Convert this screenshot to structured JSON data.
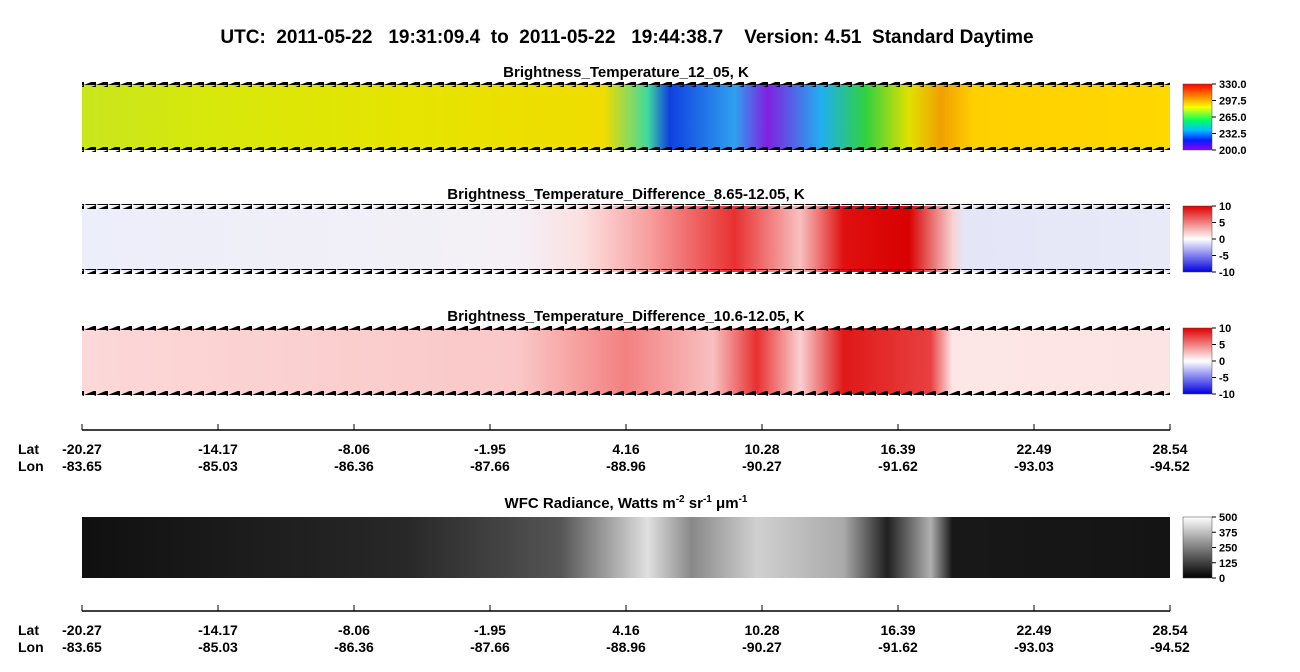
{
  "header": {
    "title": "UTC:  2011-05-22   19:31:09.4  to  2011-05-22   19:44:38.7    Version: 4.51  Standard Daytime"
  },
  "panels": [
    {
      "title": "Brightness_Temperature_12_05, K",
      "colorbar": [
        "330.0",
        "297.5",
        "265.0",
        "232.5",
        "200.0"
      ]
    },
    {
      "title": "Brightness_Temperature_Difference_8.65-12.05, K",
      "colorbar": [
        "10",
        "5",
        "0",
        "-5",
        "-10"
      ]
    },
    {
      "title": "Brightness_Temperature_Difference_10.6-12.05, K",
      "colorbar": [
        "10",
        "5",
        "0",
        "-5",
        "-10"
      ]
    }
  ],
  "wfc": {
    "title_parts": [
      "WFC Radiance, Watts m",
      "-2",
      " sr",
      "-1",
      " μm",
      "-1"
    ],
    "colorbar": [
      "500",
      "375",
      "250",
      "125",
      "0"
    ]
  },
  "axis": {
    "lat_label": "Lat",
    "lon_label": "Lon",
    "lat": [
      "-20.27",
      "-14.17",
      "-8.06",
      "-1.95",
      "4.16",
      "10.28",
      "16.39",
      "22.49",
      "28.54"
    ],
    "lon": [
      "-83.65",
      "-85.03",
      "-86.36",
      "-87.66",
      "-88.96",
      "-90.27",
      "-91.62",
      "-93.03",
      "-94.52"
    ]
  }
}
